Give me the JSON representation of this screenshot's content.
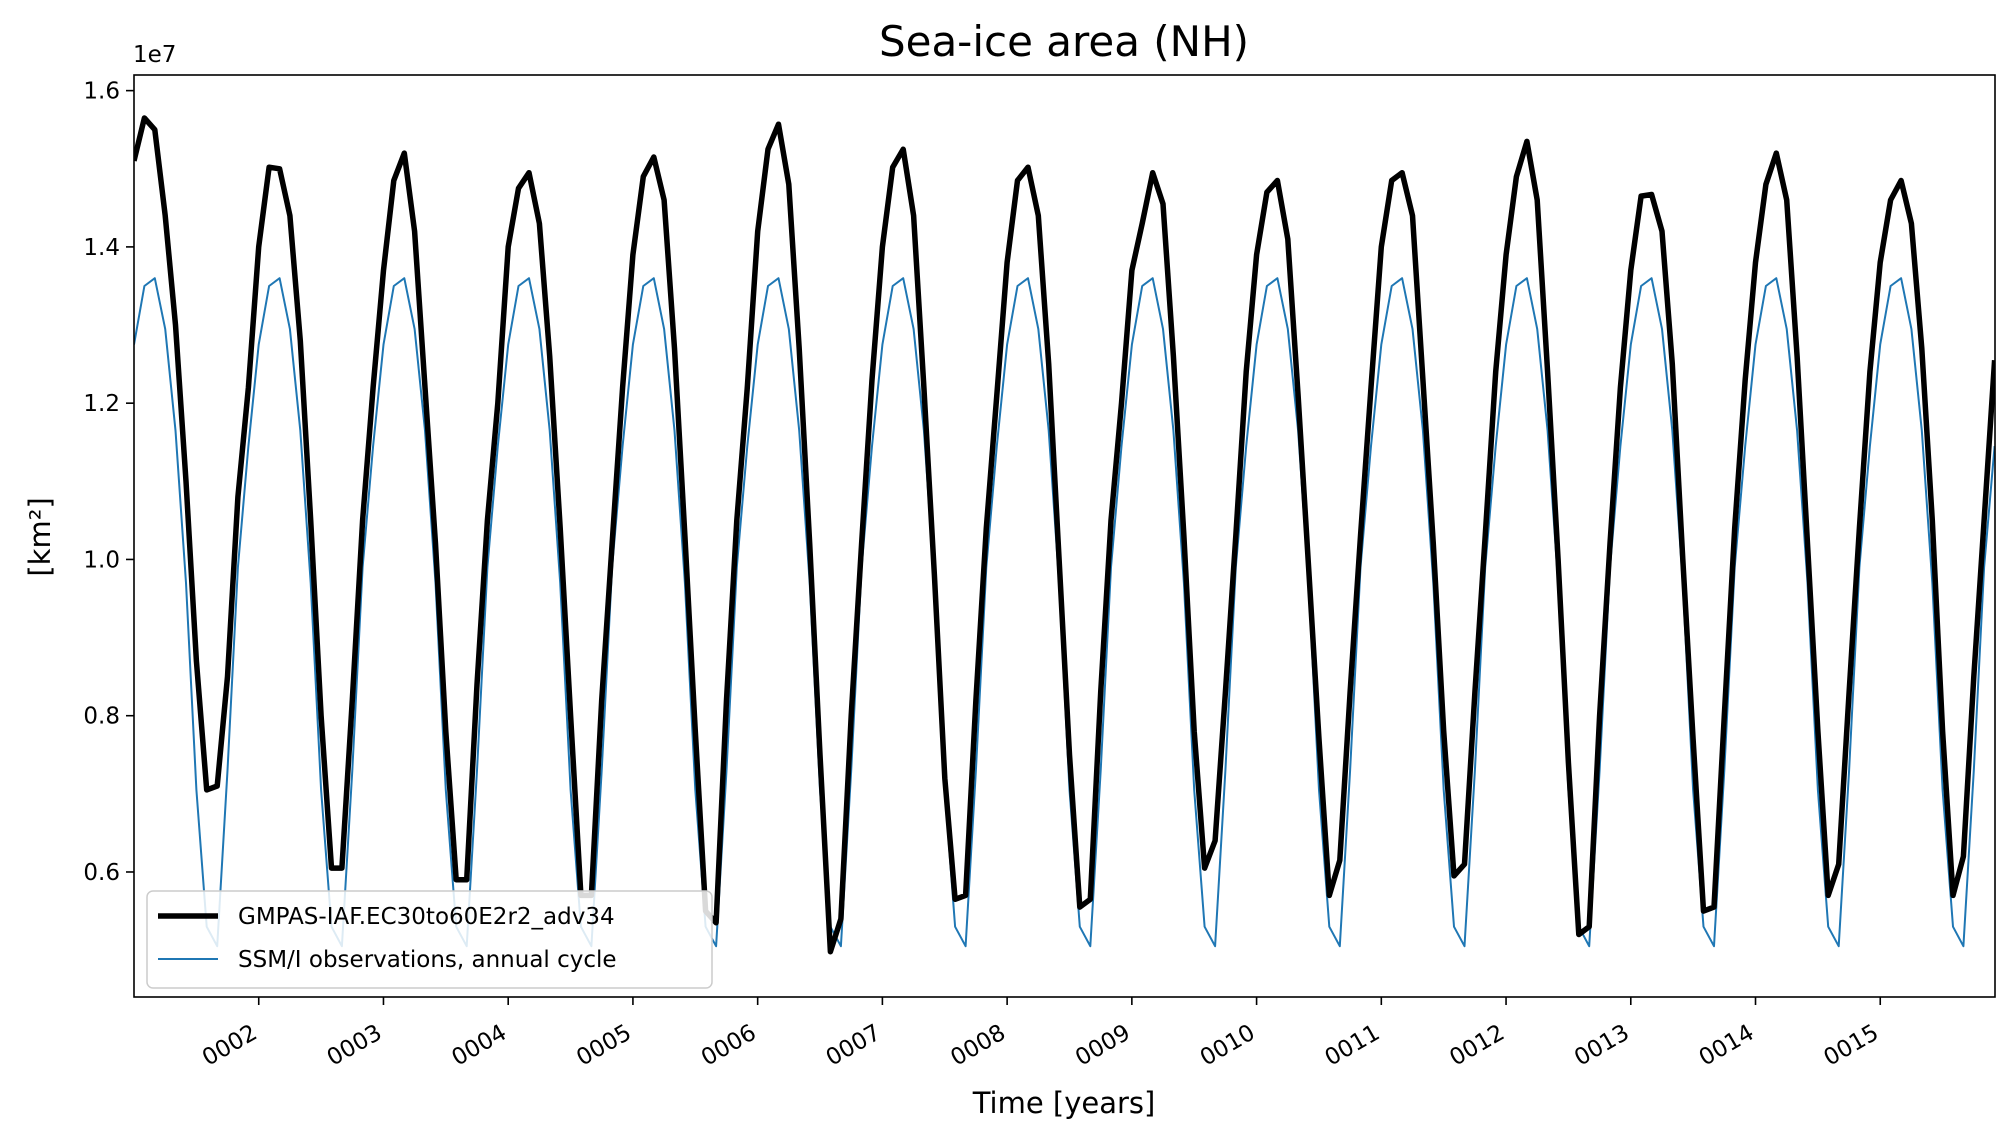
{
  "chart_data": {
    "type": "line",
    "title": "Sea-ice area (NH)",
    "xlabel": "Time [years]",
    "ylabel": "[km²]",
    "y_offset_label": "1e7",
    "ylim": [
      4400000.0,
      16200000.0
    ],
    "xlim": [
      1.0,
      15.92
    ],
    "x_tick_values": [
      2,
      3,
      4,
      5,
      6,
      7,
      8,
      9,
      10,
      11,
      12,
      13,
      14,
      15
    ],
    "x_tick_labels": [
      "0002",
      "0003",
      "0004",
      "0005",
      "0006",
      "0007",
      "0008",
      "0009",
      "0010",
      "0011",
      "0012",
      "0013",
      "0014",
      "0015"
    ],
    "y_tick_values": [
      6000000,
      8000000,
      10000000,
      12000000,
      14000000,
      16000000
    ],
    "y_tick_labels": [
      "0.6",
      "0.8",
      "1.0",
      "1.2",
      "1.4",
      "1.6"
    ],
    "legend_position": "lower-left",
    "series": [
      {
        "name": "GMPAS-IAF.EC30to60E2r2_adv34",
        "color": "#000000",
        "x": [
          1.0,
          1.083,
          1.167,
          1.25,
          1.333,
          1.417,
          1.5,
          1.583,
          1.667,
          1.75,
          1.833,
          1.917,
          2.0,
          2.083,
          2.167,
          2.25,
          2.333,
          2.417,
          2.5,
          2.583,
          2.667,
          2.75,
          2.833,
          2.917,
          3.0,
          3.083,
          3.167,
          3.25,
          3.333,
          3.417,
          3.5,
          3.583,
          3.667,
          3.75,
          3.833,
          3.917,
          4.0,
          4.083,
          4.167,
          4.25,
          4.333,
          4.417,
          4.5,
          4.583,
          4.667,
          4.75,
          4.833,
          4.917,
          5.0,
          5.083,
          5.167,
          5.25,
          5.333,
          5.417,
          5.5,
          5.583,
          5.667,
          5.75,
          5.833,
          5.917,
          6.0,
          6.083,
          6.167,
          6.25,
          6.333,
          6.417,
          6.5,
          6.583,
          6.667,
          6.75,
          6.833,
          6.917,
          7.0,
          7.083,
          7.167,
          7.25,
          7.333,
          7.417,
          7.5,
          7.583,
          7.667,
          7.75,
          7.833,
          7.917,
          8.0,
          8.083,
          8.167,
          8.25,
          8.333,
          8.417,
          8.5,
          8.583,
          8.667,
          8.75,
          8.833,
          8.917,
          9.0,
          9.083,
          9.167,
          9.25,
          9.333,
          9.417,
          9.5,
          9.583,
          9.667,
          9.75,
          9.833,
          9.917,
          10.0,
          10.083,
          10.167,
          10.25,
          10.333,
          10.417,
          10.5,
          10.583,
          10.667,
          10.75,
          10.833,
          10.917,
          11.0,
          11.083,
          11.167,
          11.25,
          11.333,
          11.417,
          11.5,
          11.583,
          11.667,
          11.75,
          11.833,
          11.917,
          12.0,
          12.083,
          12.167,
          12.25,
          12.333,
          12.417,
          12.5,
          12.583,
          12.667,
          12.75,
          12.833,
          12.917,
          13.0,
          13.083,
          13.167,
          13.25,
          13.333,
          13.417,
          13.5,
          13.583,
          13.667,
          13.75,
          13.833,
          13.917,
          14.0,
          14.083,
          14.167,
          14.25,
          14.333,
          14.417,
          14.5,
          14.583,
          14.667,
          14.75,
          14.833,
          14.917,
          15.0,
          15.083,
          15.167,
          15.25,
          15.333,
          15.417,
          15.5,
          15.583,
          15.667,
          15.75,
          15.833,
          15.917
        ],
        "y": [
          15100000,
          15650000,
          15500000,
          14400000,
          13000000,
          11000000,
          8700000,
          7050000,
          7100000,
          8500000,
          10800000,
          12200000,
          14000000,
          15020000,
          15000000,
          14400000,
          12800000,
          10500000,
          8000000,
          6050000,
          6050000,
          8200000,
          10500000,
          12200000,
          13700000,
          14850000,
          15200000,
          14200000,
          12200000,
          10200000,
          7800000,
          5900000,
          5900000,
          8400000,
          10500000,
          12000000,
          14000000,
          14750000,
          14950000,
          14300000,
          12600000,
          10400000,
          8000000,
          5700000,
          5700000,
          8200000,
          10200000,
          12200000,
          13900000,
          14900000,
          15150000,
          14600000,
          12700000,
          10300000,
          7800000,
          5500000,
          5350000,
          8200000,
          10500000,
          12200000,
          14200000,
          15250000,
          15570000,
          14800000,
          12700000,
          10200000,
          7500000,
          4980000,
          5400000,
          8000000,
          10200000,
          12300000,
          14000000,
          15020000,
          15250000,
          14400000,
          12200000,
          9800000,
          7200000,
          5650000,
          5700000,
          8200000,
          10400000,
          12100000,
          13800000,
          14850000,
          15020000,
          14400000,
          12500000,
          10000000,
          7500000,
          5550000,
          5650000,
          8300000,
          10500000,
          12000000,
          13700000,
          14300000,
          14950000,
          14550000,
          12600000,
          10300000,
          7800000,
          6050000,
          6400000,
          8300000,
          10300000,
          12400000,
          13900000,
          14700000,
          14850000,
          14100000,
          12100000,
          9900000,
          7700000,
          5700000,
          6150000,
          8300000,
          10300000,
          12200000,
          14000000,
          14850000,
          14950000,
          14400000,
          12300000,
          10200000,
          7800000,
          5950000,
          6100000,
          8300000,
          10300000,
          12400000,
          13900000,
          14900000,
          15350000,
          14600000,
          12400000,
          10000000,
          7400000,
          5200000,
          5300000,
          8000000,
          10200000,
          12200000,
          13700000,
          14650000,
          14670000,
          14200000,
          12500000,
          10000000,
          7700000,
          5500000,
          5550000,
          8000000,
          10400000,
          12300000,
          13800000,
          14800000,
          15200000,
          14600000,
          12600000,
          10200000,
          7800000,
          5700000,
          6100000,
          8300000,
          10400000,
          12400000,
          13800000,
          14600000,
          14850000,
          14300000,
          12700000,
          10500000,
          7800000,
          5700000,
          6200000,
          8500000,
          10500000,
          12550000
        ]
      },
      {
        "name": "SSM/I observations, annual cycle",
        "color": "#1f77b4",
        "x": [
          1.0,
          1.083,
          1.167,
          1.25,
          1.333,
          1.417,
          1.5,
          1.583,
          1.667,
          1.75,
          1.833,
          1.917,
          2.0,
          2.083,
          2.167,
          2.25,
          2.333,
          2.417,
          2.5,
          2.583,
          2.667,
          2.75,
          2.833,
          2.917,
          3.0,
          3.083,
          3.167,
          3.25,
          3.333,
          3.417,
          3.5,
          3.583,
          3.667,
          3.75,
          3.833,
          3.917,
          4.0,
          4.083,
          4.167,
          4.25,
          4.333,
          4.417,
          4.5,
          4.583,
          4.667,
          4.75,
          4.833,
          4.917,
          5.0,
          5.083,
          5.167,
          5.25,
          5.333,
          5.417,
          5.5,
          5.583,
          5.667,
          5.75,
          5.833,
          5.917,
          6.0,
          6.083,
          6.167,
          6.25,
          6.333,
          6.417,
          6.5,
          6.583,
          6.667,
          6.75,
          6.833,
          6.917,
          7.0,
          7.083,
          7.167,
          7.25,
          7.333,
          7.417,
          7.5,
          7.583,
          7.667,
          7.75,
          7.833,
          7.917,
          8.0,
          8.083,
          8.167,
          8.25,
          8.333,
          8.417,
          8.5,
          8.583,
          8.667,
          8.75,
          8.833,
          8.917,
          9.0,
          9.083,
          9.167,
          9.25,
          9.333,
          9.417,
          9.5,
          9.583,
          9.667,
          9.75,
          9.833,
          9.917,
          10.0,
          10.083,
          10.167,
          10.25,
          10.333,
          10.417,
          10.5,
          10.583,
          10.667,
          10.75,
          10.833,
          10.917,
          11.0,
          11.083,
          11.167,
          11.25,
          11.333,
          11.417,
          11.5,
          11.583,
          11.667,
          11.75,
          11.833,
          11.917,
          12.0,
          12.083,
          12.167,
          12.25,
          12.333,
          12.417,
          12.5,
          12.583,
          12.667,
          12.75,
          12.833,
          12.917,
          13.0,
          13.083,
          13.167,
          13.25,
          13.333,
          13.417,
          13.5,
          13.583,
          13.667,
          13.75,
          13.833,
          13.917,
          14.0,
          14.083,
          14.167,
          14.25,
          14.333,
          14.417,
          14.5,
          14.583,
          14.667,
          14.75,
          14.833,
          14.917,
          15.0,
          15.083,
          15.167,
          15.25,
          15.333,
          15.417,
          15.5,
          15.583,
          15.667,
          15.75,
          15.833,
          15.917
        ],
        "y": [
          12750000,
          13500000,
          13600000,
          12950000,
          11650000,
          9700000,
          7050000,
          5300000,
          5050000,
          7300000,
          9900000,
          11450000,
          12750000,
          13500000,
          13600000,
          12950000,
          11650000,
          9700000,
          7050000,
          5300000,
          5050000,
          7300000,
          9900000,
          11450000,
          12750000,
          13500000,
          13600000,
          12950000,
          11650000,
          9700000,
          7050000,
          5300000,
          5050000,
          7300000,
          9900000,
          11450000,
          12750000,
          13500000,
          13600000,
          12950000,
          11650000,
          9700000,
          7050000,
          5300000,
          5050000,
          7300000,
          9900000,
          11450000,
          12750000,
          13500000,
          13600000,
          12950000,
          11650000,
          9700000,
          7050000,
          5300000,
          5050000,
          7300000,
          9900000,
          11450000,
          12750000,
          13500000,
          13600000,
          12950000,
          11650000,
          9700000,
          7050000,
          5300000,
          5050000,
          7300000,
          9900000,
          11450000,
          12750000,
          13500000,
          13600000,
          12950000,
          11650000,
          9700000,
          7050000,
          5300000,
          5050000,
          7300000,
          9900000,
          11450000,
          12750000,
          13500000,
          13600000,
          12950000,
          11650000,
          9700000,
          7050000,
          5300000,
          5050000,
          7300000,
          9900000,
          11450000,
          12750000,
          13500000,
          13600000,
          12950000,
          11650000,
          9700000,
          7050000,
          5300000,
          5050000,
          7300000,
          9900000,
          11450000,
          12750000,
          13500000,
          13600000,
          12950000,
          11650000,
          9700000,
          7050000,
          5300000,
          5050000,
          7300000,
          9900000,
          11450000,
          12750000,
          13500000,
          13600000,
          12950000,
          11650000,
          9700000,
          7050000,
          5300000,
          5050000,
          7300000,
          9900000,
          11450000,
          12750000,
          13500000,
          13600000,
          12950000,
          11650000,
          9700000,
          7050000,
          5300000,
          5050000,
          7300000,
          9900000,
          11450000,
          12750000,
          13500000,
          13600000,
          12950000,
          11650000,
          9700000,
          7050000,
          5300000,
          5050000,
          7300000,
          9900000,
          11450000,
          12750000,
          13500000,
          13600000,
          12950000,
          11650000,
          9700000,
          7050000,
          5300000,
          5050000,
          7300000,
          9900000,
          11450000,
          12750000,
          13500000,
          13600000,
          12950000,
          11650000,
          9700000,
          7050000,
          5300000,
          5050000,
          7300000,
          9900000,
          11450000
        ]
      }
    ]
  }
}
